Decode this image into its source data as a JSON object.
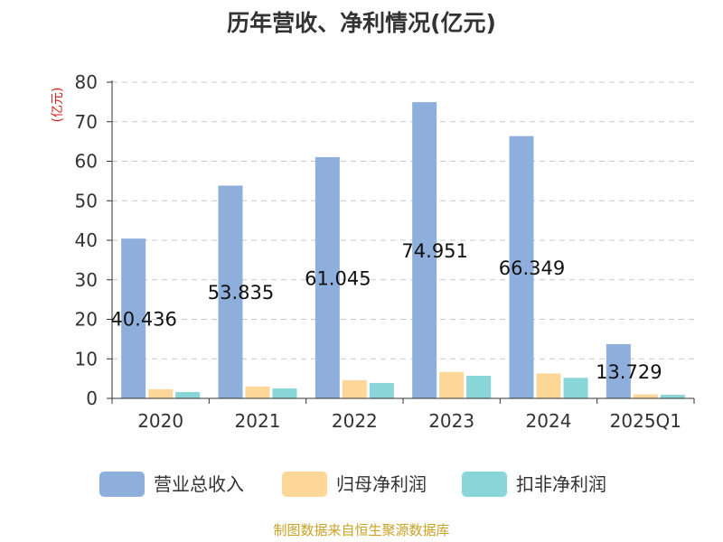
{
  "chart_data": {
    "type": "bar",
    "title": "历年营收、净利情况(亿元)",
    "ylabel": "(亿元)",
    "ylim": [
      0,
      80
    ],
    "yticks": [
      0,
      10,
      20,
      30,
      40,
      50,
      60,
      70,
      80
    ],
    "categories": [
      "2020",
      "2021",
      "2022",
      "2023",
      "2024",
      "2025Q1"
    ],
    "series": [
      {
        "name": "营业总收入",
        "color": "#8eaedb",
        "values": [
          40.436,
          53.835,
          61.045,
          74.951,
          66.349,
          13.729
        ],
        "labels": [
          "40.436",
          "53.835",
          "61.045",
          "74.951",
          "66.349",
          "13.729"
        ]
      },
      {
        "name": "归母净利润",
        "color": "#fdd797",
        "values": [
          2.3,
          3.0,
          4.6,
          6.7,
          6.3,
          1.0
        ]
      },
      {
        "name": "扣非净利润",
        "color": "#88d6d8",
        "values": [
          1.6,
          2.5,
          3.9,
          5.7,
          5.2,
          0.9
        ]
      }
    ],
    "grid": true,
    "legend": "bottom"
  },
  "source_note": "制图数据来自恒生聚源数据库"
}
